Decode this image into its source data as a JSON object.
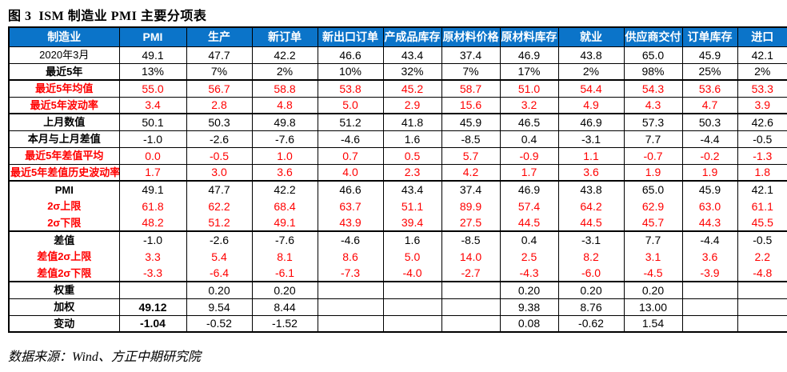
{
  "title": "图 3  ISM 制造业 PMI 主要分项表",
  "source": "数据来源：Wind、方正中期研究院",
  "colors": {
    "header_bg": "#0B74C9",
    "header_text": "#FFFFFF",
    "red_row": "#FF0000",
    "black_row": "#000000",
    "border": "#000000"
  },
  "chart_data": {
    "type": "table",
    "title": "图 3  ISM 制造业 PMI 主要分项表",
    "columns": [
      "制造业",
      "PMI",
      "生产",
      "新订单",
      "新出口订单",
      "产成品库存",
      "原材料价格",
      "原材料库存",
      "就业",
      "供应商交付",
      "订单库存",
      "进口"
    ],
    "rows": [
      {
        "label": "2020年3月",
        "color": "black",
        "values": [
          "49.1",
          "47.7",
          "42.2",
          "46.6",
          "43.4",
          "37.4",
          "46.9",
          "43.8",
          "65.0",
          "45.9",
          "42.1"
        ]
      },
      {
        "label": "最近5年",
        "color": "black",
        "values": [
          "13%",
          "7%",
          "2%",
          "10%",
          "32%",
          "7%",
          "17%",
          "2%",
          "98%",
          "25%",
          "2%"
        ]
      },
      {
        "label": "最近5年均值",
        "color": "red",
        "values": [
          "55.0",
          "56.7",
          "58.8",
          "53.8",
          "45.2",
          "58.7",
          "51.0",
          "54.4",
          "54.3",
          "53.6",
          "53.3"
        ]
      },
      {
        "label": "最近5年波动率",
        "color": "red",
        "values": [
          "3.4",
          "2.8",
          "4.8",
          "5.0",
          "2.9",
          "15.6",
          "3.2",
          "4.9",
          "4.3",
          "4.7",
          "3.9"
        ]
      },
      {
        "label": "上月数值",
        "color": "black",
        "values": [
          "50.1",
          "50.3",
          "49.8",
          "51.2",
          "41.8",
          "45.9",
          "46.5",
          "46.9",
          "57.3",
          "50.3",
          "42.6"
        ]
      },
      {
        "label": "本月与上月差值",
        "color": "black",
        "values": [
          "-1.0",
          "-2.6",
          "-7.6",
          "-4.6",
          "1.6",
          "-8.5",
          "0.4",
          "-3.1",
          "7.7",
          "-4.4",
          "-0.5"
        ]
      },
      {
        "label": "最近5年差值平均",
        "color": "red",
        "values": [
          "0.0",
          "-0.5",
          "1.0",
          "0.7",
          "0.5",
          "5.7",
          "-0.9",
          "1.1",
          "-0.7",
          "-0.2",
          "-1.3"
        ]
      },
      {
        "label": "最近5年差值历史波动率",
        "color": "red",
        "values": [
          "1.7",
          "3.0",
          "3.6",
          "4.0",
          "2.3",
          "4.2",
          "1.7",
          "3.6",
          "1.9",
          "1.9",
          "1.8"
        ]
      },
      {
        "label": "PMI",
        "color": "black",
        "values": [
          "49.1",
          "47.7",
          "42.2",
          "46.6",
          "43.4",
          "37.4",
          "46.9",
          "43.8",
          "65.0",
          "45.9",
          "42.1"
        ]
      },
      {
        "label": "2σ上限",
        "color": "red",
        "values": [
          "61.8",
          "62.2",
          "68.4",
          "63.7",
          "51.1",
          "89.9",
          "57.4",
          "64.2",
          "62.9",
          "63.0",
          "61.1"
        ]
      },
      {
        "label": "2σ下限",
        "color": "red",
        "values": [
          "48.2",
          "51.2",
          "49.1",
          "43.9",
          "39.4",
          "27.5",
          "44.5",
          "44.5",
          "45.7",
          "44.3",
          "45.5"
        ]
      },
      {
        "label": "差值",
        "color": "black",
        "values": [
          "-1.0",
          "-2.6",
          "-7.6",
          "-4.6",
          "1.6",
          "-8.5",
          "0.4",
          "-3.1",
          "7.7",
          "-4.4",
          "-0.5"
        ]
      },
      {
        "label": "差值2σ上限",
        "color": "red",
        "values": [
          "3.3",
          "5.4",
          "8.1",
          "8.6",
          "5.0",
          "14.0",
          "2.5",
          "8.2",
          "3.1",
          "3.6",
          "2.2"
        ]
      },
      {
        "label": "差值2σ下限",
        "color": "red",
        "values": [
          "-3.3",
          "-6.4",
          "-6.1",
          "-7.3",
          "-4.0",
          "-2.7",
          "-4.3",
          "-6.0",
          "-4.5",
          "-3.9",
          "-4.8"
        ]
      },
      {
        "label": "权重",
        "color": "black",
        "values": [
          "",
          "0.20",
          "0.20",
          "",
          "",
          "",
          "0.20",
          "0.20",
          "0.20",
          "",
          ""
        ]
      },
      {
        "label": "加权",
        "color": "black",
        "values": [
          "49.12",
          "9.54",
          "8.44",
          "",
          "",
          "",
          "9.38",
          "8.76",
          "13.00",
          "",
          ""
        ]
      },
      {
        "label": "变动",
        "color": "black",
        "values": [
          "-1.04",
          "-0.52",
          "-1.52",
          "",
          "",
          "",
          "0.08",
          "-0.62",
          "1.54",
          "",
          ""
        ]
      }
    ]
  }
}
